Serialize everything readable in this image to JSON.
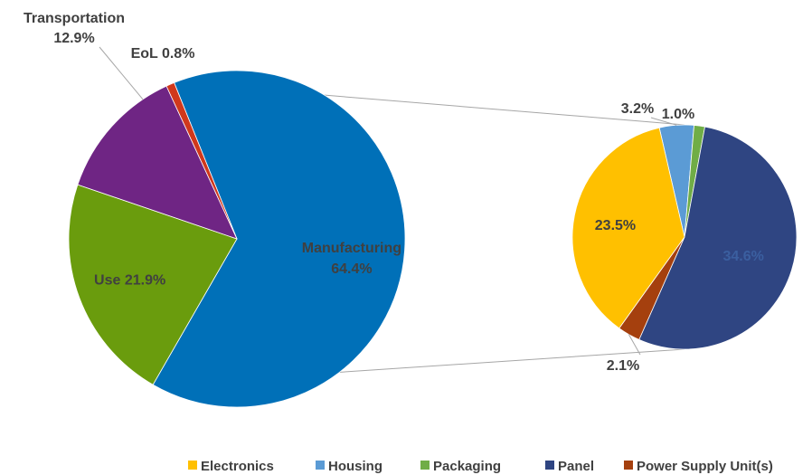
{
  "chart_data": [
    {
      "type": "pie",
      "slices": [
        {
          "label": "Manufacturing",
          "value": 64.4,
          "text": "64.4%",
          "color": "#0070B8"
        },
        {
          "label": "Use",
          "value": 21.9,
          "text": "21.9%",
          "color": "#6A9C0D"
        },
        {
          "label": "Transportation",
          "value": 12.9,
          "text": "12.9%",
          "color": "#6F2584"
        },
        {
          "label": "EoL",
          "value": 0.8,
          "text": "0.8%",
          "color": "#D0381C"
        }
      ]
    },
    {
      "type": "pie",
      "parent_slice": "Manufacturing",
      "slices": [
        {
          "label": "Housing",
          "value": 3.2,
          "text": "3.2%",
          "color": "#5B9BD5"
        },
        {
          "label": "Packaging",
          "value": 1.0,
          "text": "1.0%",
          "color": "#70AD47"
        },
        {
          "label": "Panel",
          "value": 34.6,
          "text": "34.6%",
          "color": "#2F4582"
        },
        {
          "label": "Power Supply Unit(s)",
          "value": 2.1,
          "text": "2.1%",
          "color": "#A5400E"
        },
        {
          "label": "Electronics",
          "value": 23.5,
          "text": "23.5%",
          "color": "#FFC000"
        }
      ],
      "legend": {
        "position": "bottom-right",
        "items": [
          {
            "label": "Electronics",
            "color": "#FFC000"
          },
          {
            "label": "Housing",
            "color": "#5B9BD5"
          },
          {
            "label": "Packaging",
            "color": "#70AD47"
          },
          {
            "label": "Panel",
            "color": "#2F4582"
          },
          {
            "label": "Power Supply Unit(s)",
            "color": "#A5400E"
          }
        ]
      }
    }
  ]
}
